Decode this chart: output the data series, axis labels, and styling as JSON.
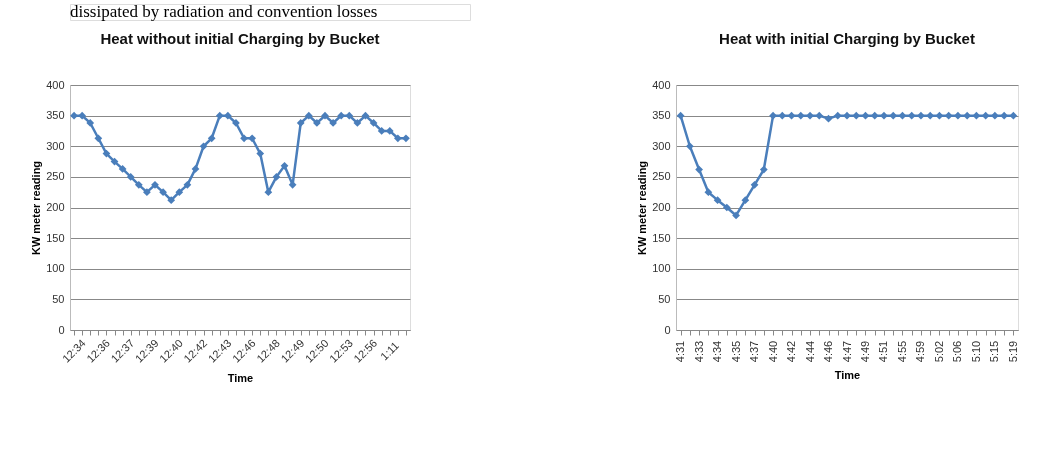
{
  "chart_data": [
    {
      "type": "line",
      "title": "Heat without initial Charging by Bucket",
      "xlabel": "Time",
      "ylabel": "KW meter reading",
      "annotations": [
        "dissipated by  radiation and convention losses"
      ],
      "categories": [
        "12:34",
        null,
        null,
        "12:36",
        null,
        null,
        "12:37",
        null,
        null,
        "12:39",
        null,
        null,
        "12:40",
        null,
        null,
        "12:42",
        null,
        null,
        "12:43",
        null,
        null,
        "12:46",
        null,
        null,
        "12:48",
        null,
        null,
        "12:49",
        null,
        null,
        "12:50",
        null,
        null,
        "12:53",
        null,
        null,
        "12:56",
        null,
        null,
        "1:11",
        null,
        null
      ],
      "series": [
        {
          "color": "#4a7ebb",
          "values": [
            350,
            350,
            338,
            313,
            288,
            275,
            263,
            250,
            237,
            225,
            237,
            225,
            212,
            225,
            237,
            263,
            300,
            313,
            350,
            350,
            338,
            313,
            313,
            288,
            225,
            250,
            268,
            237,
            338,
            350,
            338,
            350,
            338,
            350,
            350,
            338,
            350,
            338,
            325,
            325,
            313,
            313
          ]
        }
      ],
      "ylim": [
        0,
        400
      ],
      "yticks": [
        0,
        50,
        100,
        150,
        200,
        250,
        300,
        350,
        400
      ],
      "grid": "y",
      "marker": "diamond",
      "line_style": "solid"
    },
    {
      "type": "line",
      "title": "Heat with initial Charging by Bucket",
      "xlabel": "Time",
      "ylabel": "KW meter reading",
      "categories": [
        "4:31",
        null,
        "4:33",
        null,
        "4:34",
        null,
        "4:35",
        null,
        "4:37",
        null,
        "4:40",
        null,
        "4:42",
        null,
        "4:44",
        null,
        "4:46",
        null,
        "4:47",
        null,
        "4:49",
        null,
        "4:51",
        null,
        "4:55",
        null,
        "4:59",
        null,
        "5:02",
        null,
        "5:06",
        null,
        "5:10",
        null,
        "5:15",
        null,
        "5:19"
      ],
      "series": [
        {
          "color": "#4a7ebb",
          "values": [
            350,
            300,
            262,
            225,
            212,
            200,
            187,
            212,
            237,
            262,
            350,
            350,
            350,
            350,
            350,
            350,
            345,
            350,
            350,
            350,
            350,
            350,
            350,
            350,
            350,
            350,
            350,
            350,
            350,
            350,
            350,
            350,
            350,
            350,
            350,
            350,
            350
          ]
        }
      ],
      "ylim": [
        0,
        400
      ],
      "yticks": [
        0,
        50,
        100,
        150,
        200,
        250,
        300,
        350,
        400
      ],
      "grid": "y",
      "marker": "diamond",
      "line_style": "solid"
    }
  ]
}
